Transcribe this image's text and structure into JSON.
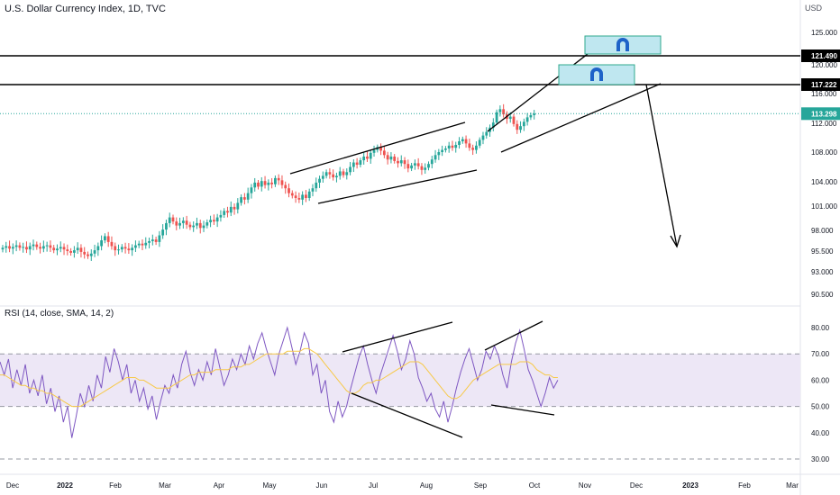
{
  "header": {
    "title": "U.S. Dollar Currency Index, 1D, TVC",
    "currency": "USD"
  },
  "rsi_panel": {
    "title": "RSI (14, close, SMA, 14, 2)"
  },
  "colors": {
    "up": "#26a69a",
    "down": "#ef5350",
    "rsi_line": "#7e57c2",
    "rsi_ma": "#f7c948",
    "rsi_band": "#ede7f6",
    "box_fill": "#bfe7f0",
    "box_stroke": "#2fa88e",
    "magnet": "#1e63c8",
    "current_line": "#26a69a"
  },
  "chart_data": [
    {
      "type": "candlestick",
      "title": "U.S. Dollar Currency Index, 1D, TVC",
      "price_axis_ticks": [
        "125.000",
        "120.000",
        "116.000",
        "112.000",
        "108.000",
        "104.000",
        "101.000",
        "98.000",
        "95.500",
        "93.000",
        "90.500"
      ],
      "time_axis_ticks": [
        "Dec",
        "2022",
        "Feb",
        "Mar",
        "Apr",
        "May",
        "Jun",
        "Jul",
        "Aug",
        "Sep",
        "Oct",
        "Nov",
        "Dec",
        "2023",
        "Feb",
        "Mar"
      ],
      "price_labels": [
        {
          "value": "121.490",
          "kind": "horizontal-line"
        },
        {
          "value": "117.222",
          "kind": "horizontal-line"
        },
        {
          "value": "113.298",
          "kind": "current-price"
        }
      ],
      "closes": [
        95.9,
        96.1,
        95.8,
        96.0,
        96.2,
        95.9,
        96.0,
        95.7,
        96.1,
        96.3,
        96.0,
        95.8,
        96.1,
        96.2,
        95.9,
        95.6,
        95.8,
        96.0,
        95.7,
        95.5,
        95.3,
        95.6,
        95.9,
        95.4,
        95.1,
        94.9,
        95.2,
        95.6,
        96.1,
        96.8,
        97.3,
        96.6,
        96.1,
        95.6,
        95.7,
        96.0,
        95.8,
        95.6,
        95.9,
        96.2,
        96.4,
        96.2,
        96.5,
        96.7,
        96.9,
        96.6,
        97.4,
        98.1,
        98.9,
        99.6,
        99.1,
        98.6,
        98.9,
        99.2,
        98.7,
        98.4,
        98.6,
        98.9,
        98.3,
        98.6,
        99.0,
        99.3,
        99.1,
        99.6,
        99.9,
        100.4,
        100.2,
        100.9,
        100.6,
        101.4,
        102.1,
        101.8,
        102.6,
        103.3,
        103.9,
        103.4,
        104.1,
        103.6,
        103.9,
        103.7,
        104.5,
        104.2,
        103.6,
        103.2,
        102.6,
        102.3,
        102.0,
        101.8,
        102.4,
        102.0,
        102.8,
        103.2,
        103.9,
        104.4,
        104.8,
        105.3,
        105.0,
        104.6,
        104.8,
        105.4,
        104.9,
        105.3,
        106.0,
        106.6,
        106.3,
        106.9,
        107.4,
        107.1,
        107.9,
        108.3,
        108.7,
        108.2,
        107.6,
        107.0,
        107.4,
        106.8,
        106.5,
        106.9,
        106.4,
        105.8,
        106.2,
        106.5,
        106.1,
        105.6,
        105.9,
        106.4,
        107.0,
        107.6,
        108.0,
        108.3,
        108.5,
        108.9,
        108.6,
        109.0,
        109.5,
        109.8,
        109.2,
        108.6,
        108.3,
        108.9,
        109.7,
        110.3,
        110.8,
        111.4,
        112.1,
        113.5,
        113.9,
        113.2,
        112.6,
        112.9,
        111.9,
        111.1,
        111.6,
        112.2,
        112.8,
        113.1,
        113.3
      ],
      "trend_channels": [
        {
          "name": "channel-1-upper",
          "from": {
            "t": "May",
            "v": 105.0
          },
          "to": {
            "t": "Aug",
            "v": 111.8
          }
        },
        {
          "name": "channel-1-lower",
          "from": {
            "t": "Jun",
            "v": 101.3
          },
          "to": {
            "t": "Sep",
            "v": 105.8
          }
        },
        {
          "name": "wedge-upper",
          "from": {
            "t": "Sep",
            "v": 110.0
          },
          "to": {
            "t": "Oct",
            "v": 125.0
          }
        },
        {
          "name": "wedge-lower",
          "from": {
            "t": "Sep",
            "v": 107.6
          },
          "to": {
            "t": "Nov",
            "v": 117.2
          }
        }
      ],
      "projection_arrow": {
        "from": 117.222,
        "to": 95.5
      }
    },
    {
      "type": "line",
      "title": "RSI (14, close, SMA, 14, 2)",
      "ylim": [
        30,
        80
      ],
      "axis_ticks": [
        "80.00",
        "70.00",
        "60.00",
        "50.00",
        "40.00",
        "30.00"
      ],
      "band": [
        50,
        70
      ],
      "series": [
        {
          "values": [
            67,
            62,
            68,
            57,
            64,
            58,
            66,
            55,
            60,
            54,
            62,
            51,
            57,
            48,
            54,
            44,
            50,
            38,
            46,
            55,
            50,
            58,
            52,
            62,
            57,
            69,
            63,
            72,
            67,
            60,
            66,
            55,
            60,
            52,
            57,
            49,
            54,
            45,
            52,
            58,
            55,
            62,
            57,
            66,
            71,
            63,
            58,
            64,
            60,
            67,
            62,
            72,
            65,
            58,
            62,
            68,
            64,
            70,
            66,
            73,
            68,
            74,
            78,
            72,
            67,
            62,
            70,
            75,
            80,
            73,
            66,
            71,
            78,
            74,
            62,
            66,
            55,
            60,
            48,
            44,
            52,
            46,
            50,
            57,
            63,
            69,
            73,
            66,
            60,
            55,
            62,
            67,
            72,
            77,
            71,
            64,
            68,
            75,
            70,
            61,
            57,
            52,
            55,
            49,
            46,
            52,
            44,
            50,
            57,
            63,
            68,
            72,
            66,
            60,
            64,
            71,
            68,
            73,
            69,
            62,
            57,
            67,
            74,
            79,
            72,
            64,
            60,
            55,
            50,
            55,
            61,
            57,
            60
          ],
          "ma": [
            62,
            62,
            61,
            60,
            59,
            58,
            58,
            57,
            57,
            56,
            56,
            55,
            55,
            54,
            53,
            52,
            51,
            50,
            50,
            50,
            51,
            52,
            53,
            54,
            55,
            56,
            57,
            58,
            59,
            60,
            61,
            61,
            61,
            60,
            60,
            59,
            58,
            57,
            57,
            57,
            57,
            58,
            59,
            60,
            61,
            62,
            62,
            63,
            63,
            63,
            63,
            64,
            64,
            64,
            64,
            65,
            65,
            65,
            66,
            66,
            67,
            68,
            69,
            70,
            70,
            70,
            70,
            70,
            71,
            71,
            71,
            71,
            72,
            72,
            71,
            70,
            68,
            66,
            64,
            62,
            60,
            58,
            56,
            55,
            55,
            56,
            58,
            59,
            59,
            60,
            60,
            61,
            62,
            63,
            64,
            65,
            66,
            67,
            67,
            67,
            66,
            64,
            62,
            60,
            58,
            56,
            54,
            53,
            53,
            54,
            56,
            58,
            60,
            61,
            62,
            63,
            64,
            65,
            66,
            66,
            66,
            66,
            66,
            67,
            67,
            67,
            66,
            64,
            63,
            62,
            62,
            61,
            61
          ]
        }
      ]
    }
  ]
}
